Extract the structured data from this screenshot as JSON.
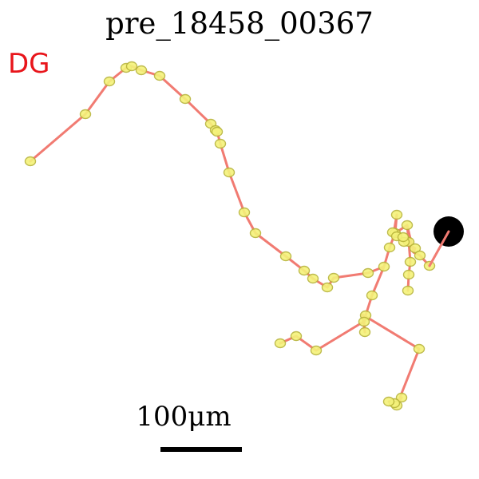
{
  "title": "pre_18458_00367",
  "region_label": "DG",
  "scale_bar": {
    "label": "100μm"
  },
  "colors": {
    "region_label": "#e8151b",
    "trace": "#f17b72",
    "node_fill": "#f4f27a",
    "node_stroke": "#b8b43a",
    "soma": "#000000",
    "scale_bar": "#000000"
  }
}
